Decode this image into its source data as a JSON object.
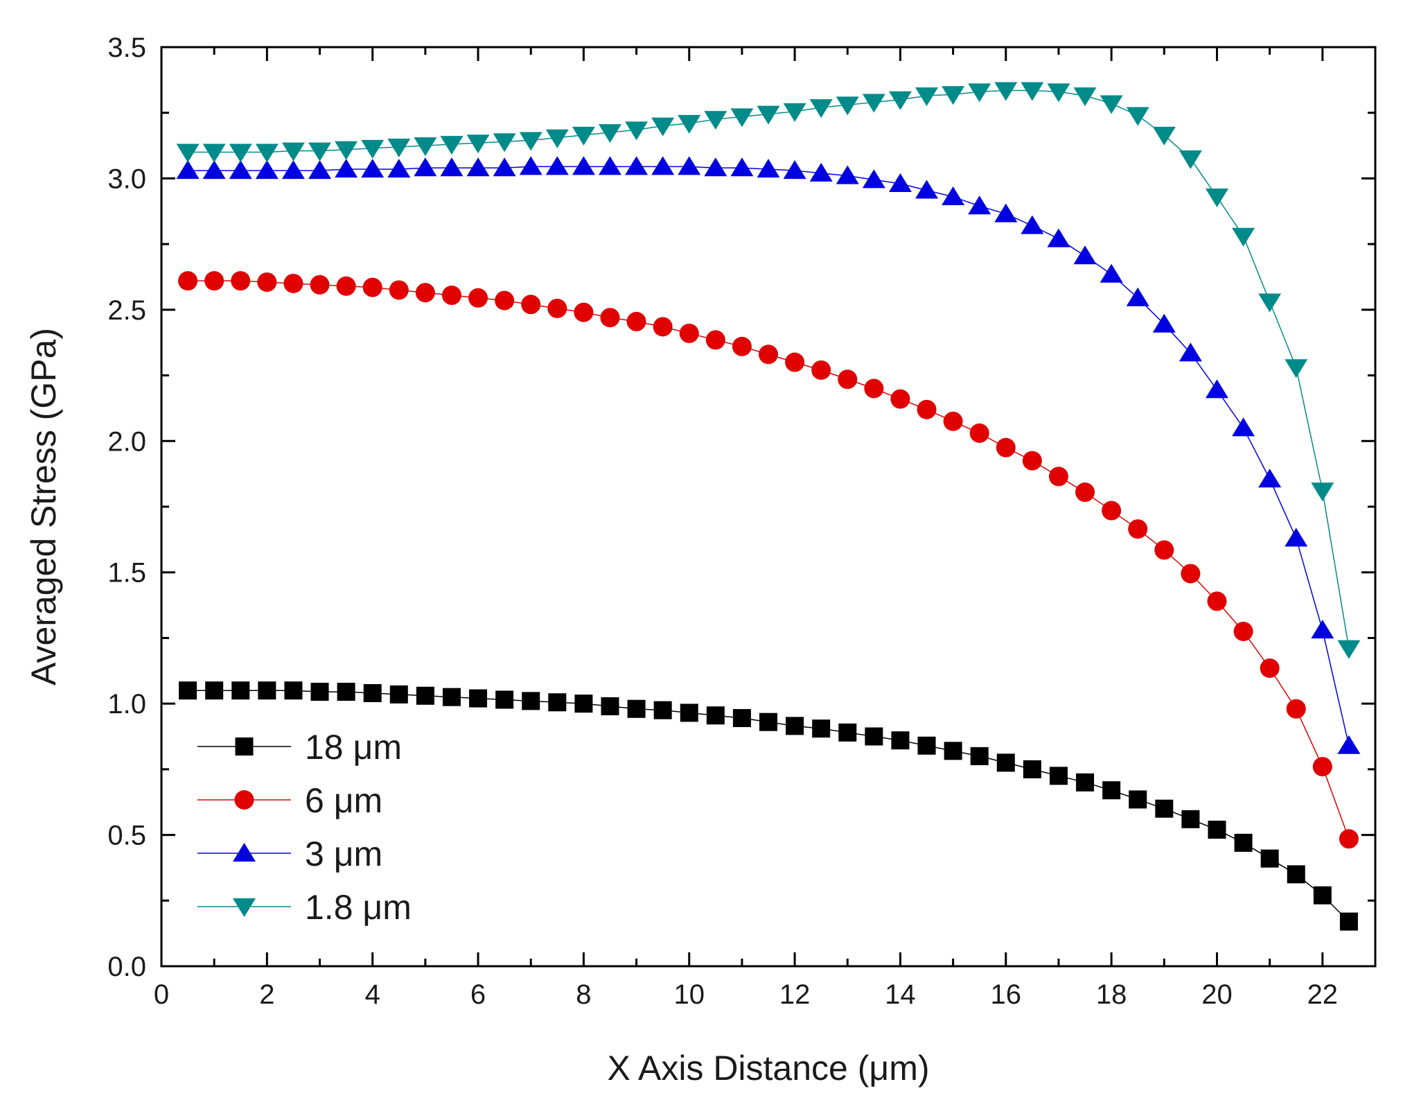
{
  "chart_data": {
    "type": "line",
    "title": "",
    "xlabel": "X Axis Distance (μm)",
    "ylabel": "Averaged Stress (GPa)",
    "xlim": [
      0,
      23
    ],
    "ylim": [
      0,
      3.5
    ],
    "x_ticks": [
      "0",
      "2",
      "4",
      "6",
      "8",
      "10",
      "12",
      "14",
      "16",
      "18",
      "20",
      "22"
    ],
    "y_ticks": [
      "0.0",
      "0.5",
      "1.0",
      "1.5",
      "2.0",
      "2.5",
      "3.0",
      "3.5"
    ],
    "grid": false,
    "legend_position": "bottom-left",
    "x": [
      0.5,
      1,
      1.5,
      2,
      2.5,
      3,
      3.5,
      4,
      4.5,
      5,
      5.5,
      6,
      6.5,
      7,
      7.5,
      8,
      8.5,
      9,
      9.5,
      10,
      10.5,
      11,
      11.5,
      12,
      12.5,
      13,
      13.5,
      14,
      14.5,
      15,
      15.5,
      16,
      16.5,
      17,
      17.5,
      18,
      18.5,
      19,
      19.5,
      20,
      20.5,
      21,
      21.5,
      22,
      22.5
    ],
    "series": [
      {
        "name": "18 μm",
        "color": "#000000",
        "marker": "square",
        "values": [
          1.05,
          1.05,
          1.05,
          1.05,
          1.05,
          1.045,
          1.045,
          1.04,
          1.035,
          1.03,
          1.025,
          1.02,
          1.015,
          1.01,
          1.005,
          1.0,
          0.99,
          0.98,
          0.975,
          0.965,
          0.955,
          0.945,
          0.93,
          0.915,
          0.905,
          0.89,
          0.875,
          0.86,
          0.84,
          0.82,
          0.8,
          0.775,
          0.75,
          0.725,
          0.7,
          0.67,
          0.635,
          0.6,
          0.56,
          0.52,
          0.47,
          0.41,
          0.35,
          0.27,
          0.17
        ]
      },
      {
        "name": "6 μm",
        "color": "#e00000",
        "marker": "circle",
        "values": [
          2.61,
          2.61,
          2.61,
          2.605,
          2.6,
          2.595,
          2.59,
          2.585,
          2.575,
          2.565,
          2.555,
          2.545,
          2.535,
          2.52,
          2.505,
          2.49,
          2.47,
          2.455,
          2.435,
          2.41,
          2.385,
          2.36,
          2.33,
          2.3,
          2.27,
          2.235,
          2.2,
          2.16,
          2.12,
          2.075,
          2.03,
          1.975,
          1.925,
          1.865,
          1.805,
          1.735,
          1.665,
          1.585,
          1.495,
          1.39,
          1.275,
          1.135,
          0.98,
          0.76,
          0.485
        ]
      },
      {
        "name": "3 μm",
        "color": "#0000e0",
        "marker": "triangle-up",
        "values": [
          3.03,
          3.03,
          3.03,
          3.03,
          3.03,
          3.03,
          3.035,
          3.035,
          3.035,
          3.04,
          3.04,
          3.04,
          3.04,
          3.045,
          3.045,
          3.045,
          3.045,
          3.045,
          3.045,
          3.045,
          3.04,
          3.04,
          3.035,
          3.03,
          3.02,
          3.01,
          2.995,
          2.98,
          2.955,
          2.93,
          2.895,
          2.865,
          2.82,
          2.77,
          2.705,
          2.635,
          2.545,
          2.445,
          2.335,
          2.195,
          2.05,
          1.855,
          1.63,
          1.28,
          0.84
        ]
      },
      {
        "name": "1.8 μm",
        "color": "#008b8b",
        "marker": "triangle-down",
        "values": [
          3.1,
          3.1,
          3.1,
          3.1,
          3.105,
          3.105,
          3.11,
          3.115,
          3.12,
          3.125,
          3.13,
          3.135,
          3.14,
          3.145,
          3.155,
          3.165,
          3.175,
          3.185,
          3.2,
          3.21,
          3.225,
          3.235,
          3.245,
          3.255,
          3.27,
          3.28,
          3.29,
          3.3,
          3.315,
          3.32,
          3.33,
          3.335,
          3.335,
          3.33,
          3.315,
          3.285,
          3.24,
          3.165,
          3.075,
          2.93,
          2.78,
          2.53,
          2.28,
          1.81,
          1.21
        ]
      }
    ]
  }
}
